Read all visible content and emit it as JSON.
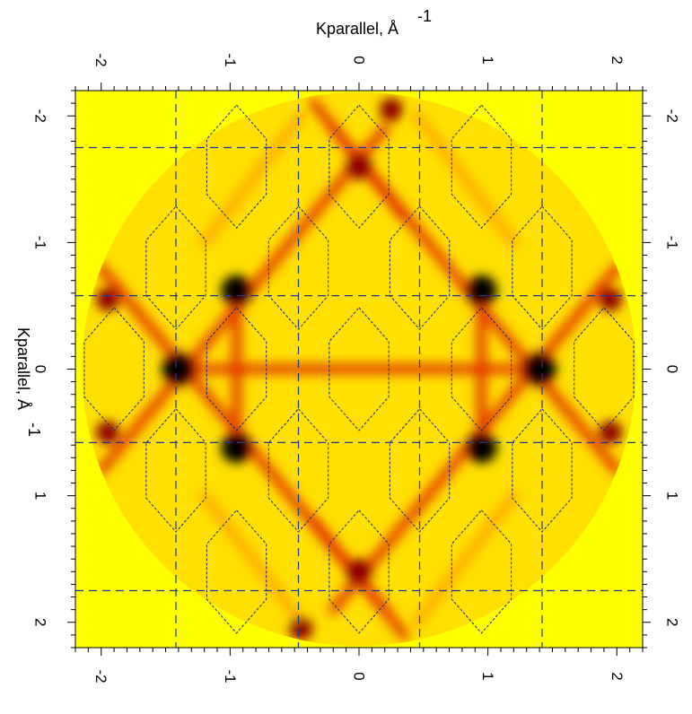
{
  "chart_data": {
    "type": "heatmap",
    "title": "",
    "xlabel": "Kparallel, Å",
    "xlabel_exponent": "-1",
    "ylabel": "Kparallel, Å",
    "ylabel_exponent": "-1",
    "xlim": [
      -2.2,
      2.2
    ],
    "ylim": [
      -2.2,
      2.2
    ],
    "x_ticks": [
      -2,
      -1,
      0,
      1,
      2
    ],
    "y_ticks": [
      -2,
      -1,
      0,
      1,
      2
    ],
    "x_tick_labels": [
      "-2",
      "-1",
      "0",
      "1",
      "2"
    ],
    "y_tick_labels": [
      "-2",
      "-1",
      "0",
      "1",
      "2"
    ],
    "colormap": [
      "#ffff00",
      "#ffa500",
      "#e03000",
      "#8b0000",
      "#000000"
    ],
    "background_color": "#ffff00",
    "data_region": "disk",
    "data_radius": 2.15,
    "dashed_grid_x": [
      -1.42,
      -0.47,
      0.47,
      1.42
    ],
    "dashed_grid_y": [
      -1.75,
      -0.58,
      0.58,
      1.75
    ],
    "grid_color": "#1a3a8a",
    "brillouin_zone_color": "#1a2a80",
    "intensity_features": [
      {
        "x": -1.4,
        "y": 0.0,
        "i": 1.0,
        "w": 0.13
      },
      {
        "x": 1.4,
        "y": 0.0,
        "i": 1.0,
        "w": 0.13
      },
      {
        "x": -0.95,
        "y": -0.62,
        "i": 0.9,
        "w": 0.12
      },
      {
        "x": 0.95,
        "y": -0.62,
        "i": 0.9,
        "w": 0.12
      },
      {
        "x": -0.95,
        "y": 0.62,
        "i": 0.9,
        "w": 0.12
      },
      {
        "x": 0.95,
        "y": 0.62,
        "i": 0.9,
        "w": 0.12
      },
      {
        "x": -1.95,
        "y": -0.55,
        "i": 0.8,
        "w": 0.09
      },
      {
        "x": 1.95,
        "y": -0.55,
        "i": 0.75,
        "w": 0.09
      },
      {
        "x": -1.95,
        "y": 0.5,
        "i": 0.75,
        "w": 0.09
      },
      {
        "x": 1.95,
        "y": 0.5,
        "i": 0.75,
        "w": 0.09
      },
      {
        "x": 0.0,
        "y": -1.6,
        "i": 0.7,
        "w": 0.1
      },
      {
        "x": 0.0,
        "y": 1.6,
        "i": 0.7,
        "w": 0.1
      },
      {
        "x": 0.25,
        "y": -2.05,
        "i": 0.85,
        "w": 0.09
      },
      {
        "x": -0.45,
        "y": 2.05,
        "i": 0.85,
        "w": 0.09
      }
    ],
    "intensity_lines": [
      {
        "x1": -2.0,
        "y1": -0.8,
        "x2": 0.2,
        "y2": 1.9,
        "i": 0.55
      },
      {
        "x1": -2.0,
        "y1": 0.8,
        "x2": 0.2,
        "y2": -1.9,
        "i": 0.55
      },
      {
        "x1": 2.0,
        "y1": -0.8,
        "x2": -0.2,
        "y2": 1.9,
        "i": 0.55
      },
      {
        "x1": 2.0,
        "y1": 0.8,
        "x2": -0.2,
        "y2": -1.9,
        "i": 0.55
      },
      {
        "x1": -1.4,
        "y1": 0.0,
        "x2": 1.4,
        "y2": 0.0,
        "i": 0.45
      },
      {
        "x1": -0.95,
        "y1": -0.62,
        "x2": -0.95,
        "y2": 0.62,
        "i": 0.45
      },
      {
        "x1": 0.95,
        "y1": -0.62,
        "x2": 0.95,
        "y2": 0.62,
        "i": 0.45
      },
      {
        "x1": -0.35,
        "y1": -2.1,
        "x2": 0.35,
        "y2": -1.2,
        "i": 0.4
      },
      {
        "x1": 0.35,
        "y1": 2.1,
        "x2": -0.35,
        "y2": 1.2,
        "i": 0.4
      },
      {
        "x1": -0.45,
        "y1": -2.0,
        "x2": -1.2,
        "y2": -1.0,
        "i": 0.35
      },
      {
        "x1": 0.45,
        "y1": -2.0,
        "x2": 1.2,
        "y2": -1.0,
        "i": 0.35
      },
      {
        "x1": -0.45,
        "y1": 2.0,
        "x2": -1.2,
        "y2": 1.0,
        "i": 0.35
      },
      {
        "x1": 0.45,
        "y1": 2.0,
        "x2": 1.2,
        "y2": 1.0,
        "i": 0.35
      }
    ],
    "zone_centers": [
      {
        "x": 0.0,
        "y": 0.0
      },
      {
        "x": -0.95,
        "y": 0.0
      },
      {
        "x": 0.95,
        "y": 0.0
      },
      {
        "x": -1.9,
        "y": 0.0
      },
      {
        "x": 1.9,
        "y": 0.0
      },
      {
        "x": -0.47,
        "y": -0.8
      },
      {
        "x": 0.47,
        "y": -0.8
      },
      {
        "x": -0.47,
        "y": 0.8
      },
      {
        "x": 0.47,
        "y": 0.8
      },
      {
        "x": -1.42,
        "y": -0.8
      },
      {
        "x": 1.42,
        "y": -0.8
      },
      {
        "x": -1.42,
        "y": 0.8
      },
      {
        "x": 1.42,
        "y": 0.8
      },
      {
        "x": 0.0,
        "y": -1.6
      },
      {
        "x": -0.95,
        "y": -1.6
      },
      {
        "x": 0.95,
        "y": -1.6
      },
      {
        "x": 0.0,
        "y": 1.6
      },
      {
        "x": -0.95,
        "y": 1.6
      },
      {
        "x": 0.95,
        "y": 1.6
      }
    ]
  }
}
